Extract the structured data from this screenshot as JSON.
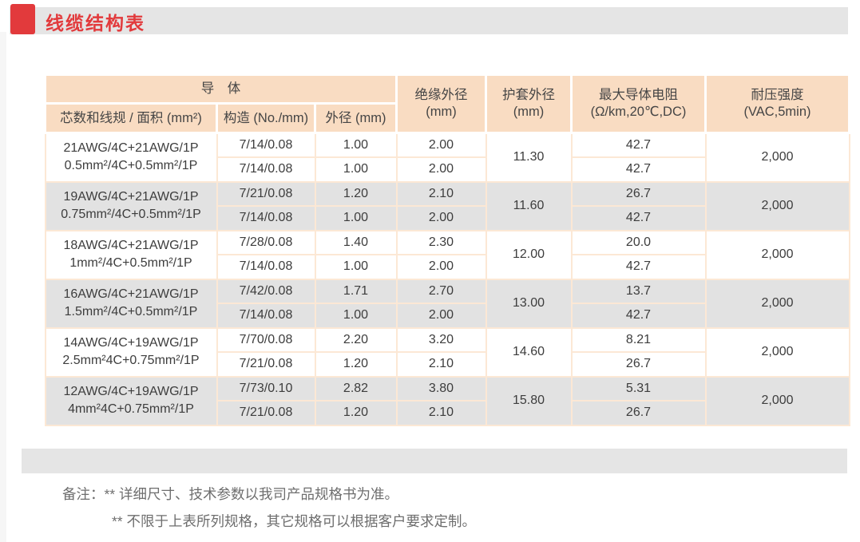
{
  "page": {
    "title": "线缆结构表"
  },
  "colors": {
    "accent_red": "#e23a3c",
    "bar_gray": "#e5e5e5",
    "header_peach": "#f9dcc2",
    "row_alt_gray": "#e2e2e2",
    "border_peach": "#fce8d5"
  },
  "table": {
    "header": {
      "conductor_group": "导　体",
      "core_spec": "芯数和线规 / 面积 (mm²)",
      "construction": "构造 (No./mm)",
      "outer_diameter": "外径 (mm)",
      "insulation_od": "绝缘外径\n(mm)",
      "sheath_od": "护套外径\n(mm)",
      "max_resistance": "最大导体电阻\n(Ω/km,20℃,DC)",
      "withstand_voltage": "耐压强度\n(VAC,5min)"
    },
    "groups": [
      {
        "spec_awg": "21AWG/4C+21AWG/1P",
        "spec_mm": "0.5mm²/4C+0.5mm²/1P",
        "sheath_od": "11.30",
        "voltage": "2,000",
        "rows": [
          {
            "construction": "7/14/0.08",
            "od": "1.00",
            "insulation": "2.00",
            "resistance": "42.7"
          },
          {
            "construction": "7/14/0.08",
            "od": "1.00",
            "insulation": "2.00",
            "resistance": "42.7"
          }
        ]
      },
      {
        "spec_awg": "19AWG/4C+21AWG/1P",
        "spec_mm": "0.75mm²/4C+0.5mm²/1P",
        "sheath_od": "11.60",
        "voltage": "2,000",
        "rows": [
          {
            "construction": "7/21/0.08",
            "od": "1.20",
            "insulation": "2.10",
            "resistance": "26.7"
          },
          {
            "construction": "7/14/0.08",
            "od": "1.00",
            "insulation": "2.00",
            "resistance": "42.7"
          }
        ]
      },
      {
        "spec_awg": "18AWG/4C+21AWG/1P",
        "spec_mm": "1mm²/4C+0.5mm²/1P",
        "sheath_od": "12.00",
        "voltage": "2,000",
        "rows": [
          {
            "construction": "7/28/0.08",
            "od": "1.40",
            "insulation": "2.30",
            "resistance": "20.0"
          },
          {
            "construction": "7/14/0.08",
            "od": "1.00",
            "insulation": "2.00",
            "resistance": "42.7"
          }
        ]
      },
      {
        "spec_awg": "16AWG/4C+21AWG/1P",
        "spec_mm": "1.5mm²/4C+0.5mm²/1P",
        "sheath_od": "13.00",
        "voltage": "2,000",
        "rows": [
          {
            "construction": "7/42/0.08",
            "od": "1.71",
            "insulation": "2.70",
            "resistance": "13.7"
          },
          {
            "construction": "7/14/0.08",
            "od": "1.00",
            "insulation": "2.00",
            "resistance": "42.7"
          }
        ]
      },
      {
        "spec_awg": "14AWG/4C+19AWG/1P",
        "spec_mm": "2.5mm²4C+0.75mm²/1P",
        "sheath_od": "14.60",
        "voltage": "2,000",
        "rows": [
          {
            "construction": "7/70/0.08",
            "od": "2.20",
            "insulation": "3.20",
            "resistance": "8.21"
          },
          {
            "construction": "7/21/0.08",
            "od": "1.20",
            "insulation": "2.10",
            "resistance": "26.7"
          }
        ]
      },
      {
        "spec_awg": "12AWG/4C+19AWG/1P",
        "spec_mm": "4mm²4C+0.75mm²/1P",
        "sheath_od": "15.80",
        "voltage": "2,000",
        "rows": [
          {
            "construction": "7/73/0.10",
            "od": "2.82",
            "insulation": "3.80",
            "resistance": "5.31"
          },
          {
            "construction": "7/21/0.08",
            "od": "1.20",
            "insulation": "2.10",
            "resistance": "26.7"
          }
        ]
      }
    ]
  },
  "notes": {
    "line1": "备注：** 详细尺寸、技术参数以我司产品规格书为准。",
    "line2": "** 不限于上表所列规格，其它规格可以根据客户要求定制。"
  }
}
